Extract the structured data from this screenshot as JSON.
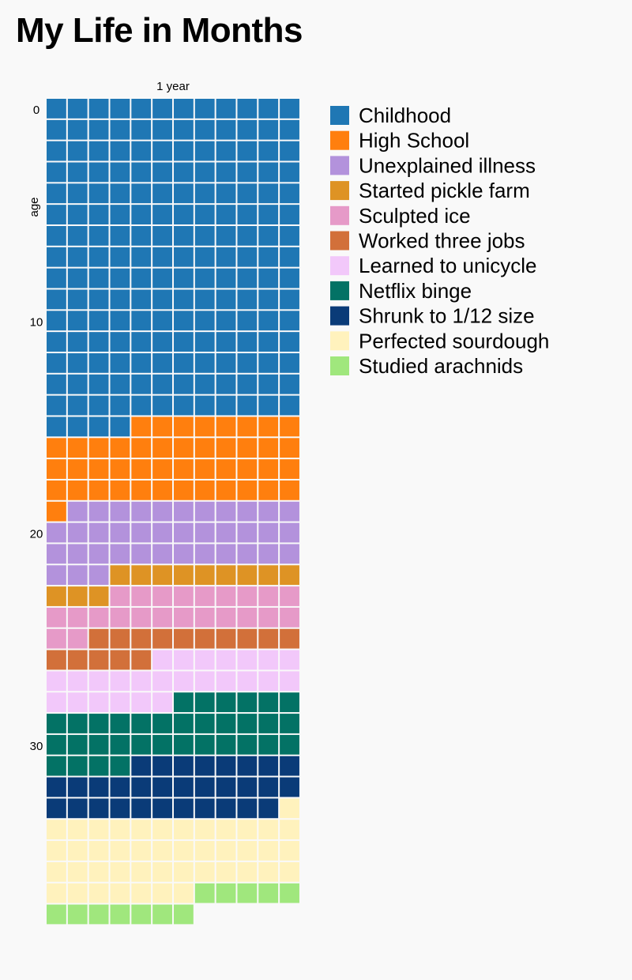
{
  "page": {
    "title": "My Life in Months"
  },
  "chart_data": {
    "type": "waffle",
    "title": "My Life in Months",
    "unit": "month",
    "columns": 12,
    "xlabel": "1 year",
    "ylabel": "age",
    "y_ticks": [
      {
        "value": 0,
        "label": "0"
      },
      {
        "value": 10,
        "label": "10"
      },
      {
        "value": 20,
        "label": "20"
      },
      {
        "value": 30,
        "label": "30"
      }
    ],
    "legend_position": "right",
    "series": [
      {
        "name": "Childhood",
        "months": 184,
        "color": "#1f77b4"
      },
      {
        "name": "High School",
        "months": 45,
        "color": "#ff7f0e"
      },
      {
        "name": "Unexplained illness",
        "months": 38,
        "color": "#b392dc"
      },
      {
        "name": "Started pickle farm",
        "months": 12,
        "color": "#de9324"
      },
      {
        "name": "Sculpted ice",
        "months": 23,
        "color": "#e69ac8"
      },
      {
        "name": "Worked three jobs",
        "months": 15,
        "color": "#d2703a"
      },
      {
        "name": "Learned to unicycle",
        "months": 25,
        "color": "#f2c8fa"
      },
      {
        "name": "Netflix binge",
        "months": 34,
        "color": "#037265"
      },
      {
        "name": "Shrunk to 1/12 size",
        "months": 31,
        "color": "#0a3b78"
      },
      {
        "name": "Perfected sourdough",
        "months": 44,
        "color": "#fff2bd"
      },
      {
        "name": "Studied arachnids",
        "months": 12,
        "color": "#a0e77d"
      }
    ]
  }
}
